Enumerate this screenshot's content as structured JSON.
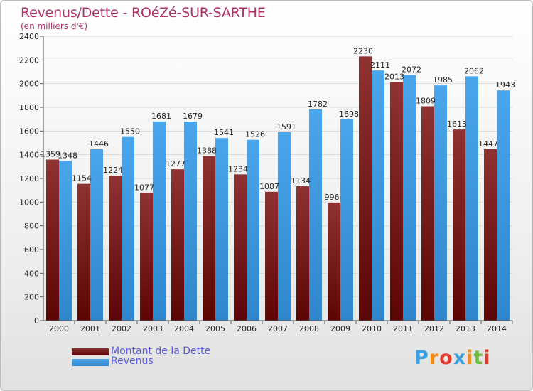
{
  "title": "Revenus/Dette - ROéZé-SUR-SARTHE",
  "subtitle": "(en milliers d'€)",
  "logo": [
    "P",
    "r",
    "o",
    "x",
    "i",
    "t",
    "i"
  ],
  "logo_colors": [
    "#3aa0e0",
    "#f08a1a",
    "#e23b2e",
    "#3aa0e0",
    "#f08a1a",
    "#6cbf3a",
    "#e23b2e"
  ],
  "colors": {
    "dette": "#7a1a1a",
    "revenus": "#3d9ae0",
    "grid": "#d8d8d8",
    "axis": "#555555"
  },
  "chart_data": {
    "type": "bar",
    "title": "Revenus/Dette - ROéZé-SUR-SARTHE",
    "ylabel": "(en milliers d'€)",
    "categories": [
      "2000",
      "2001",
      "2002",
      "2003",
      "2004",
      "2005",
      "2006",
      "2007",
      "2008",
      "2009",
      "2010",
      "2011",
      "2012",
      "2013",
      "2014"
    ],
    "series": [
      {
        "name": "Montant de la Dette",
        "values": [
          1359,
          1154,
          1224,
          1077,
          1277,
          1388,
          1234,
          1087,
          1134,
          996,
          2230,
          2013,
          1809,
          1613,
          1447
        ]
      },
      {
        "name": "Revenus",
        "values": [
          1348,
          1446,
          1550,
          1681,
          1679,
          1541,
          1526,
          1591,
          1782,
          1698,
          2111,
          2072,
          1985,
          2062,
          1943
        ]
      }
    ],
    "ylim": [
      0,
      2400
    ],
    "yticks": [
      0,
      200,
      400,
      600,
      800,
      1000,
      1200,
      1400,
      1600,
      1800,
      2000,
      2200,
      2400
    ],
    "grid": true,
    "legend_position": "bottom-left"
  }
}
